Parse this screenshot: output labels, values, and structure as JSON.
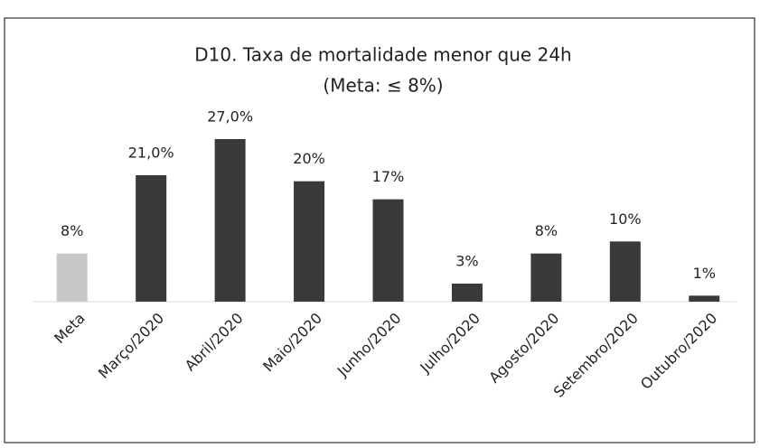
{
  "chart_data": {
    "type": "bar",
    "title": "D10. Taxa de mortalidade menor que 24h",
    "subtitle": "(Meta: ≤ 8%)",
    "categories": [
      "Meta",
      "Março/2020",
      "Abril/2020",
      "Maio/2020",
      "Junho/2020",
      "Julho/2020",
      "Agosto/2020",
      "Setembro/2020",
      "Outubro/2020"
    ],
    "values": [
      8,
      21,
      27,
      20,
      17,
      3,
      8,
      10,
      1
    ],
    "value_labels": [
      "8%",
      "21,0%",
      "27,0%",
      "20%",
      "17%",
      "3%",
      "8%",
      "10%",
      "1%"
    ],
    "colors": [
      "#c8c8c8",
      "#3a3a3a",
      "#3a3a3a",
      "#3a3a3a",
      "#3a3a3a",
      "#3a3a3a",
      "#3a3a3a",
      "#3a3a3a",
      "#3a3a3a"
    ],
    "ylim": [
      0,
      30
    ]
  }
}
